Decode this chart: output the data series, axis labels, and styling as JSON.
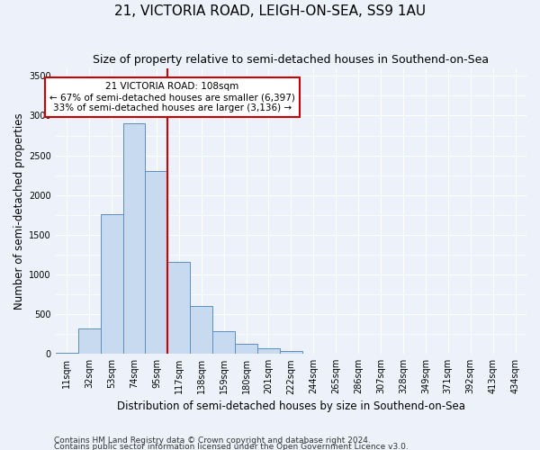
{
  "title": "21, VICTORIA ROAD, LEIGH-ON-SEA, SS9 1AU",
  "subtitle": "Size of property relative to semi-detached houses in Southend-on-Sea",
  "xlabel": "Distribution of semi-detached houses by size in Southend-on-Sea",
  "ylabel": "Number of semi-detached properties",
  "categories": [
    "11sqm",
    "32sqm",
    "53sqm",
    "74sqm",
    "95sqm",
    "117sqm",
    "138sqm",
    "159sqm",
    "180sqm",
    "201sqm",
    "222sqm",
    "244sqm",
    "265sqm",
    "286sqm",
    "307sqm",
    "328sqm",
    "349sqm",
    "371sqm",
    "392sqm",
    "413sqm",
    "434sqm"
  ],
  "values": [
    10,
    320,
    1760,
    2900,
    2300,
    1160,
    600,
    285,
    130,
    70,
    40,
    0,
    0,
    0,
    0,
    0,
    0,
    0,
    0,
    0,
    0
  ],
  "bar_color": "#c8daf0",
  "bar_edge_color": "#5a8fc0",
  "property_size_label": "21 VICTORIA ROAD: 108sqm",
  "pct_smaller": 67,
  "n_smaller": 6397,
  "pct_larger": 33,
  "n_larger": 3136,
  "vline_color": "#cc0000",
  "annotation_box_color": "#ffffff",
  "annotation_box_edge_color": "#cc0000",
  "ylim": [
    0,
    3600
  ],
  "yticks": [
    0,
    500,
    1000,
    1500,
    2000,
    2500,
    3000,
    3500
  ],
  "footnote1": "Contains HM Land Registry data © Crown copyright and database right 2024.",
  "footnote2": "Contains public sector information licensed under the Open Government Licence v3.0.",
  "background_color": "#edf2fa",
  "grid_color": "#ffffff",
  "title_fontsize": 11,
  "subtitle_fontsize": 9,
  "tick_fontsize": 7,
  "label_fontsize": 8.5,
  "footnote_fontsize": 6.5
}
